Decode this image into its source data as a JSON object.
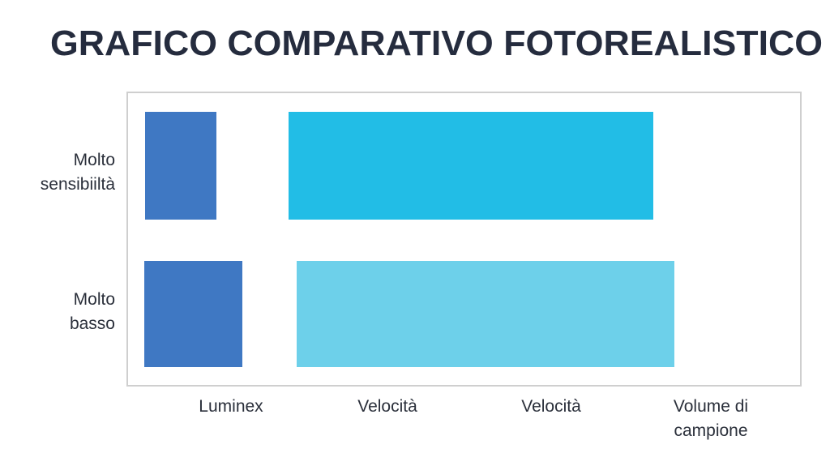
{
  "header": {
    "title": "GRAFICO COMPARATIVO FOTOREALISTICO"
  },
  "rows": [
    {
      "lines": [
        "Molto",
        "sensibiiltà"
      ]
    },
    {
      "lines": [
        "Molto",
        "basso"
      ]
    }
  ],
  "columns": [
    {
      "lines": [
        "Luminex"
      ]
    },
    {
      "lines": [
        "Velocità"
      ]
    },
    {
      "lines": [
        "Velocità"
      ]
    },
    {
      "lines": [
        "Volume di",
        "campione"
      ]
    }
  ]
}
